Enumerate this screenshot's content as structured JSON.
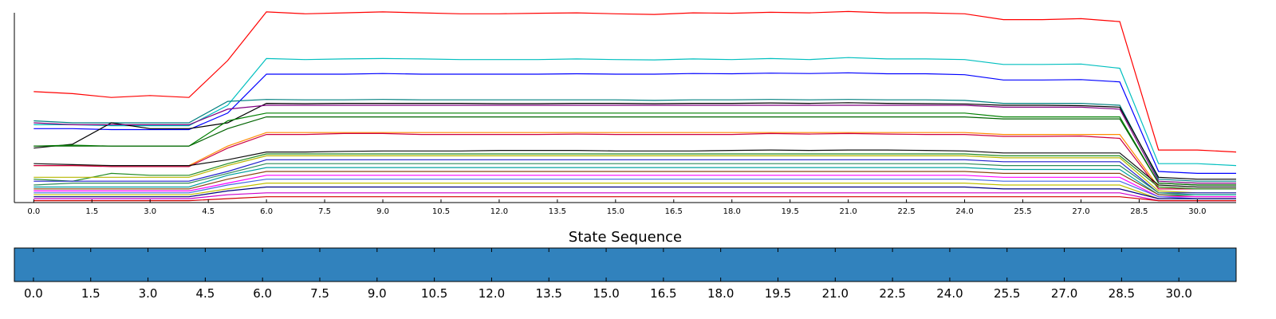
{
  "chart_data": [
    {
      "type": "line",
      "title": "",
      "xlabel": "",
      "ylabel": "",
      "xlim": [
        -0.5,
        31
      ],
      "ylim": [
        0,
        100
      ],
      "grid": false,
      "legend": "none",
      "x_ticks": [
        "0.0",
        "1.5",
        "3.0",
        "4.5",
        "6.0",
        "7.5",
        "9.0",
        "10.5",
        "12.0",
        "13.5",
        "15.0",
        "16.5",
        "18.0",
        "19.5",
        "21.0",
        "22.5",
        "24.0",
        "25.5",
        "27.0",
        "28.5",
        "30.0"
      ],
      "x": [
        0,
        1,
        2,
        3,
        4,
        5,
        6,
        7,
        8,
        9,
        10,
        11,
        12,
        13,
        14,
        15,
        16,
        17,
        18,
        19,
        20,
        21,
        22,
        23,
        24,
        25,
        26,
        27,
        28,
        29,
        30,
        31
      ],
      "series": [
        {
          "color": "#ff0000",
          "values": [
            57,
            56,
            54,
            55,
            54,
            73,
            98,
            97,
            97.5,
            98,
            97.5,
            97,
            97,
            97.3,
            97.5,
            97,
            96.7,
            97.5,
            97.3,
            97.8,
            97.5,
            98.2,
            97.5,
            97.5,
            97,
            94,
            94,
            94.5,
            93,
            27,
            27,
            26
          ]
        },
        {
          "color": "#00bfbf",
          "values": [
            40,
            40,
            39.5,
            39.5,
            39.5,
            50,
            74,
            73.5,
            73.8,
            74,
            73.8,
            73.5,
            73.5,
            73.5,
            73.8,
            73.5,
            73.3,
            73.8,
            73.5,
            74,
            73.5,
            74.5,
            73.8,
            73.8,
            73.5,
            71,
            71,
            71.2,
            69,
            20,
            20,
            19
          ]
        },
        {
          "color": "#0000ff",
          "values": [
            38,
            38,
            37.5,
            37.5,
            37.5,
            46,
            66,
            66,
            66,
            66.3,
            66,
            66,
            66,
            66,
            66.2,
            66,
            66,
            66.3,
            66.2,
            66.5,
            66.3,
            66.7,
            66.2,
            66.2,
            65.7,
            63,
            63,
            63.2,
            62,
            16,
            15,
            15
          ]
        },
        {
          "color": "#008080",
          "values": [
            42,
            41,
            41,
            41,
            41,
            52,
            53,
            52.8,
            52.8,
            53,
            52.8,
            52.8,
            52.8,
            52.8,
            52.8,
            52.8,
            52.5,
            52.8,
            52.8,
            53,
            52.8,
            53,
            52.8,
            52.8,
            52.5,
            51,
            51,
            51,
            50,
            12,
            11,
            11
          ]
        },
        {
          "color": "#000000",
          "values": [
            28,
            30,
            41,
            38,
            38,
            41,
            51,
            50.8,
            51,
            51,
            51,
            51,
            50.8,
            50.8,
            51,
            51,
            50.8,
            51,
            51,
            51.2,
            51,
            51.3,
            51,
            50.8,
            50.7,
            50,
            50,
            49.8,
            49,
            13,
            12,
            12
          ]
        },
        {
          "color": "#800080",
          "values": [
            41,
            40,
            40,
            40,
            40,
            48,
            50,
            50,
            50,
            50,
            50,
            50,
            50,
            50,
            50,
            50,
            50,
            50,
            50,
            50,
            50,
            50,
            50,
            50,
            50,
            49,
            49,
            49,
            48,
            11,
            10,
            10
          ]
        },
        {
          "color": "#008000",
          "values": [
            29,
            29.5,
            29,
            29,
            29,
            42,
            46,
            46,
            46,
            46,
            46,
            46,
            46,
            46,
            46,
            46,
            46,
            46,
            46,
            46,
            46,
            46,
            46,
            46,
            46,
            44,
            44,
            44,
            44,
            10,
            9,
            9
          ]
        },
        {
          "color": "#006400",
          "values": [
            29,
            29,
            29,
            29,
            29,
            38,
            44,
            44,
            44,
            44,
            44,
            44,
            44,
            44,
            44,
            44,
            44,
            44,
            44,
            44,
            44,
            44,
            44,
            44,
            44,
            43,
            43,
            43,
            43,
            10,
            9,
            9
          ]
        },
        {
          "color": "#ff8c00",
          "values": [
            19,
            19,
            19,
            19,
            19,
            29,
            36,
            36,
            36,
            36,
            36,
            36,
            36,
            36,
            36,
            36,
            36,
            36,
            36,
            36,
            36,
            36,
            36,
            36,
            36,
            35,
            35,
            35,
            35,
            8,
            7,
            7
          ]
        },
        {
          "color": "#cc0044",
          "values": [
            19,
            19,
            18.5,
            18.5,
            18.5,
            28,
            35,
            35,
            35.5,
            35.5,
            35,
            35,
            35,
            35,
            35.2,
            35,
            35,
            35,
            35,
            35.5,
            35.2,
            35.5,
            35.2,
            35,
            35,
            34,
            34,
            34.2,
            33,
            7,
            7,
            7
          ]
        },
        {
          "color": "#101010",
          "values": [
            20,
            19.5,
            19,
            19,
            19,
            22,
            26,
            26,
            26.3,
            26.5,
            26.5,
            26.5,
            26.8,
            26.8,
            26.8,
            26.5,
            26.5,
            26.5,
            26.8,
            27,
            26.8,
            27,
            27,
            26.8,
            26.5,
            25.5,
            25.5,
            25.5,
            25.5,
            9,
            8,
            8
          ]
        },
        {
          "color": "#228b22",
          "values": [
            12,
            11,
            15,
            14,
            14,
            20,
            25,
            25,
            25,
            25,
            25,
            25,
            25,
            25,
            25,
            25,
            25,
            25,
            25,
            25,
            25,
            25,
            25,
            25,
            25,
            24,
            24,
            24,
            24,
            8,
            7,
            7
          ]
        },
        {
          "color": "#b8b800",
          "values": [
            13,
            13,
            13,
            13,
            13,
            19,
            24,
            24,
            24,
            24,
            24,
            24,
            24,
            24,
            24,
            24,
            24,
            24,
            24,
            24,
            24,
            24,
            24,
            24,
            24,
            23,
            23,
            23,
            23,
            6,
            5,
            5
          ]
        },
        {
          "color": "#1f1fcc",
          "values": [
            11,
            11,
            11,
            11,
            11,
            16,
            22,
            22,
            22,
            22,
            22,
            22,
            22,
            22,
            22,
            22,
            22,
            22,
            22,
            22,
            22,
            22,
            22,
            22,
            22,
            21,
            21,
            21,
            21,
            5,
            5,
            5
          ]
        },
        {
          "color": "#2e8b57",
          "values": [
            9,
            10,
            10,
            10,
            10,
            15,
            20,
            20,
            20,
            20,
            20,
            20,
            20,
            20,
            20,
            20,
            20,
            20,
            20,
            20,
            20,
            20,
            20,
            20,
            20,
            19,
            19,
            19,
            19,
            5,
            4,
            4
          ]
        },
        {
          "color": "#00a0a0",
          "values": [
            8,
            8,
            8,
            8,
            8,
            14,
            18,
            18,
            18,
            18,
            18,
            18,
            18,
            18,
            18,
            18,
            18,
            18,
            18,
            18,
            18,
            18,
            18,
            18,
            18,
            17,
            17,
            17,
            17,
            4,
            4,
            4
          ]
        },
        {
          "color": "#8b4513",
          "values": [
            7,
            7,
            7,
            7,
            7,
            12,
            16,
            16,
            16,
            16,
            16,
            16,
            16,
            16,
            16,
            16,
            16,
            16,
            16,
            16,
            16,
            16,
            16,
            16,
            16,
            15,
            15,
            15,
            15,
            4,
            3,
            3
          ]
        },
        {
          "color": "#ff00ff",
          "values": [
            6,
            6,
            6,
            6,
            6,
            10,
            14,
            14,
            14,
            14,
            14,
            14,
            14,
            14,
            14,
            14,
            14,
            14,
            14,
            14,
            14,
            14,
            14,
            14,
            14,
            13,
            13,
            13,
            13,
            3,
            3,
            3
          ]
        },
        {
          "color": "#4169e1",
          "values": [
            5,
            5,
            5,
            5,
            5,
            9,
            12,
            12,
            12,
            12,
            12,
            12,
            12,
            12,
            12,
            12,
            12,
            12,
            12,
            12,
            12,
            12,
            12,
            12,
            12,
            11,
            11,
            11,
            11,
            3,
            2,
            2
          ]
        },
        {
          "color": "#c0c000",
          "values": [
            4,
            4,
            4,
            4,
            4,
            7,
            10,
            10,
            10,
            10,
            10,
            10,
            10,
            10,
            10,
            10,
            10,
            10,
            10,
            10,
            10,
            10,
            10,
            10,
            10,
            9,
            9,
            9,
            9,
            2,
            2,
            2
          ]
        },
        {
          "color": "#000080",
          "values": [
            3,
            3,
            3,
            3,
            3,
            6,
            8,
            8,
            8,
            8,
            8,
            8,
            8,
            8,
            8,
            8,
            8,
            8,
            8,
            8,
            8,
            8,
            8,
            8,
            8,
            7,
            7,
            7,
            7,
            2,
            2,
            2
          ]
        },
        {
          "color": "#cc00cc",
          "values": [
            2,
            2,
            2,
            2,
            2,
            4,
            5,
            5,
            5,
            5,
            5,
            5,
            5,
            5,
            5,
            5,
            5,
            5,
            5,
            5,
            5,
            5,
            5,
            5,
            5,
            5,
            5,
            5,
            5,
            1,
            1,
            1
          ]
        },
        {
          "color": "#d00000",
          "values": [
            1,
            1,
            1,
            1,
            1,
            2,
            3,
            3,
            3,
            3,
            3,
            3,
            3,
            3,
            3,
            3,
            3,
            3,
            3,
            3,
            3,
            3,
            3,
            3,
            3,
            3,
            3,
            3,
            3,
            1,
            1,
            1
          ]
        }
      ]
    },
    {
      "type": "heatmap",
      "title": "State Sequence",
      "xlabel": "",
      "ylabel": "",
      "xlim": [
        -0.5,
        31.5
      ],
      "x_ticks": [
        "0.0",
        "1.5",
        "3.0",
        "4.5",
        "6.0",
        "7.5",
        "9.0",
        "10.5",
        "12.0",
        "13.5",
        "15.0",
        "16.5",
        "18.0",
        "19.5",
        "21.0",
        "22.5",
        "24.0",
        "25.5",
        "27.0",
        "28.5",
        "30.0"
      ],
      "fill_color": "#3182bd",
      "states": [
        0,
        0,
        0,
        0,
        0,
        0,
        0,
        0,
        0,
        0,
        0,
        0,
        0,
        0,
        0,
        0,
        0,
        0,
        0,
        0,
        0,
        0,
        0,
        0,
        0,
        0,
        0,
        0,
        0,
        0,
        0,
        0
      ]
    }
  ]
}
